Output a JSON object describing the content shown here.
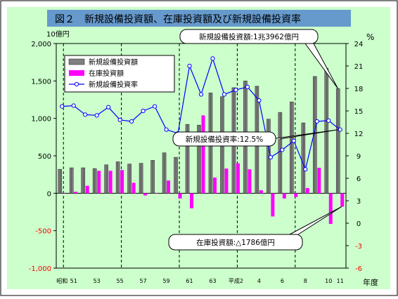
{
  "chart_data": {
    "type": "bar",
    "title": "図２　新規設備投資額、在庫投資額及び新規設備投資率",
    "left_axis": {
      "unit": "10億円",
      "ylim": [
        -1000,
        2000
      ],
      "ticks": [
        -1000,
        -500,
        0,
        500,
        1000,
        1500,
        2000
      ],
      "tick_labels": [
        "-1,000",
        "-500",
        "0",
        "500",
        "1,000",
        "1,500",
        "2,000"
      ]
    },
    "right_axis": {
      "unit": "%",
      "ylim": [
        -6,
        24
      ],
      "ticks": [
        -6,
        -3,
        0,
        3,
        6,
        9,
        12,
        15,
        18,
        21,
        24
      ],
      "tick_labels": [
        "-6",
        "-3",
        "0",
        "3",
        "6",
        "9",
        "12",
        "15",
        "18",
        "21",
        "24"
      ]
    },
    "xlabel": "年度",
    "categories": [
      "昭和50",
      "51",
      "52",
      "53",
      "54",
      "55",
      "56",
      "57",
      "58",
      "59",
      "60",
      "61",
      "62",
      "63",
      "平成元",
      "2",
      "3",
      "4",
      "5",
      "6",
      "7",
      "8",
      "9",
      "10",
      "11"
    ],
    "x_tick_labels": [
      {
        "index": 0,
        "label": "昭和"
      },
      {
        "index": 1,
        "label": "51"
      },
      {
        "index": 3,
        "label": "53"
      },
      {
        "index": 5,
        "label": "55"
      },
      {
        "index": 7,
        "label": "57"
      },
      {
        "index": 9,
        "label": "59"
      },
      {
        "index": 11,
        "label": "61"
      },
      {
        "index": 13,
        "label": "63"
      },
      {
        "index": 15,
        "label": "平成2"
      },
      {
        "index": 17,
        "label": "4"
      },
      {
        "index": 19,
        "label": "6"
      },
      {
        "index": 21,
        "label": "8"
      },
      {
        "index": 23,
        "label": "10"
      },
      {
        "index": 24,
        "label": "11"
      }
    ],
    "era_dividers": [
      0,
      5,
      10,
      15,
      20
    ],
    "series": [
      {
        "name": "新規設備投資額",
        "axis": "left",
        "kind": "bar",
        "color": "#808080",
        "values": [
          320,
          340,
          340,
          330,
          380,
          420,
          390,
          400,
          440,
          540,
          480,
          920,
          910,
          1340,
          1290,
          1410,
          1500,
          1430,
          990,
          1080,
          1220,
          940,
          1560,
          1670,
          1396
        ]
      },
      {
        "name": "在庫投資額",
        "axis": "left",
        "kind": "bar",
        "color": "#ff00ff",
        "values": [
          0,
          20,
          100,
          300,
          300,
          310,
          140,
          -30,
          0,
          170,
          -70,
          -200,
          1040,
          210,
          330,
          400,
          320,
          40,
          -310,
          -70,
          -50,
          70,
          340,
          -410,
          -179
        ]
      },
      {
        "name": "新規設備投資率",
        "axis": "right",
        "kind": "line",
        "color": "#0000ff",
        "values": [
          15.6,
          15.7,
          14.5,
          14.4,
          15.5,
          13.8,
          13.6,
          15.0,
          15.6,
          12.5,
          12.0,
          21.0,
          17.2,
          22.0,
          17.2,
          17.8,
          18.2,
          16.4,
          8.8,
          9.8,
          11.0,
          7.2,
          13.6,
          13.7,
          12.5
        ]
      }
    ],
    "legend": {
      "placement": "top-left",
      "entries": [
        "新規設備投資額",
        "在庫投資額",
        "新規設備投資率"
      ]
    },
    "callouts": [
      {
        "text": "新規設備投資額:1兆3962億円"
      },
      {
        "text": "新規設備投資率:12.5%"
      },
      {
        "text": "在庫投資額:△1786億円"
      }
    ],
    "grid": false,
    "colors": {
      "background": "#ccffcc",
      "frame": "#000000",
      "title_band": "#6699cc",
      "callout_bg": "#ffffff"
    }
  }
}
